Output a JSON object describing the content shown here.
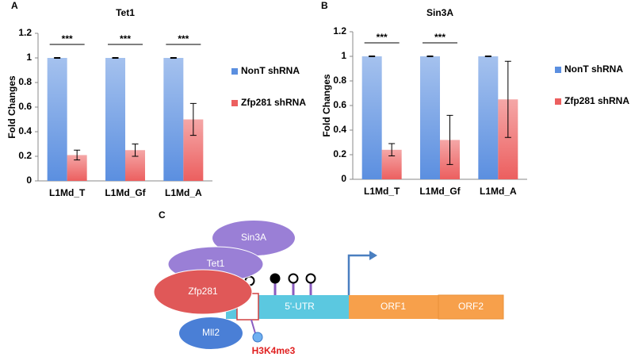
{
  "chart_data": [
    {
      "panel": "A",
      "type": "bar",
      "title": "Tet1",
      "y_label": "Fold Changes",
      "categories": [
        "L1Md_T",
        "L1Md_Gf",
        "L1Md_A"
      ],
      "series": [
        {
          "name": "NonT shRNA",
          "color": "#5b8fe0",
          "values": [
            1,
            1,
            1
          ],
          "errors": [
            0.003,
            0.003,
            0.003
          ]
        },
        {
          "name": "Zfp281 shRNA",
          "color": "#ec5f5f",
          "values": [
            0.21,
            0.25,
            0.5
          ],
          "errors": [
            0.04,
            0.05,
            0.13
          ]
        }
      ],
      "significance": [
        "***",
        "***",
        "***"
      ],
      "ylim": [
        0,
        1.2
      ],
      "yticks": [
        0,
        0.2,
        0.4,
        0.6,
        0.8,
        1,
        1.2
      ],
      "legend": "right"
    },
    {
      "panel": "B",
      "type": "bar",
      "title": "Sin3A",
      "y_label": "Fold Changes",
      "categories": [
        "L1Md_T",
        "L1Md_Gf",
        "L1Md_A"
      ],
      "series": [
        {
          "name": "NonT shRNA",
          "color": "#5b8fe0",
          "values": [
            1,
            1,
            1
          ],
          "errors": [
            0.003,
            0.003,
            0.003
          ]
        },
        {
          "name": "Zfp281 shRNA",
          "color": "#ec5f5f",
          "values": [
            0.24,
            0.32,
            0.65
          ],
          "errors": [
            0.05,
            0.2,
            0.31
          ]
        }
      ],
      "significance": [
        "***",
        "***",
        null
      ],
      "ylim": [
        0,
        1.2
      ],
      "yticks": [
        0,
        0.2,
        0.4,
        0.6,
        0.8,
        1,
        1.2
      ],
      "legend": "right"
    }
  ],
  "diagram": {
    "panel": "C",
    "proteins": [
      "Sin3A",
      "Tet1",
      "Zfp281",
      "Mll2"
    ],
    "regions": [
      "5'-UTR",
      "ORF1",
      "ORF2"
    ],
    "mark": "H3K4me3"
  }
}
